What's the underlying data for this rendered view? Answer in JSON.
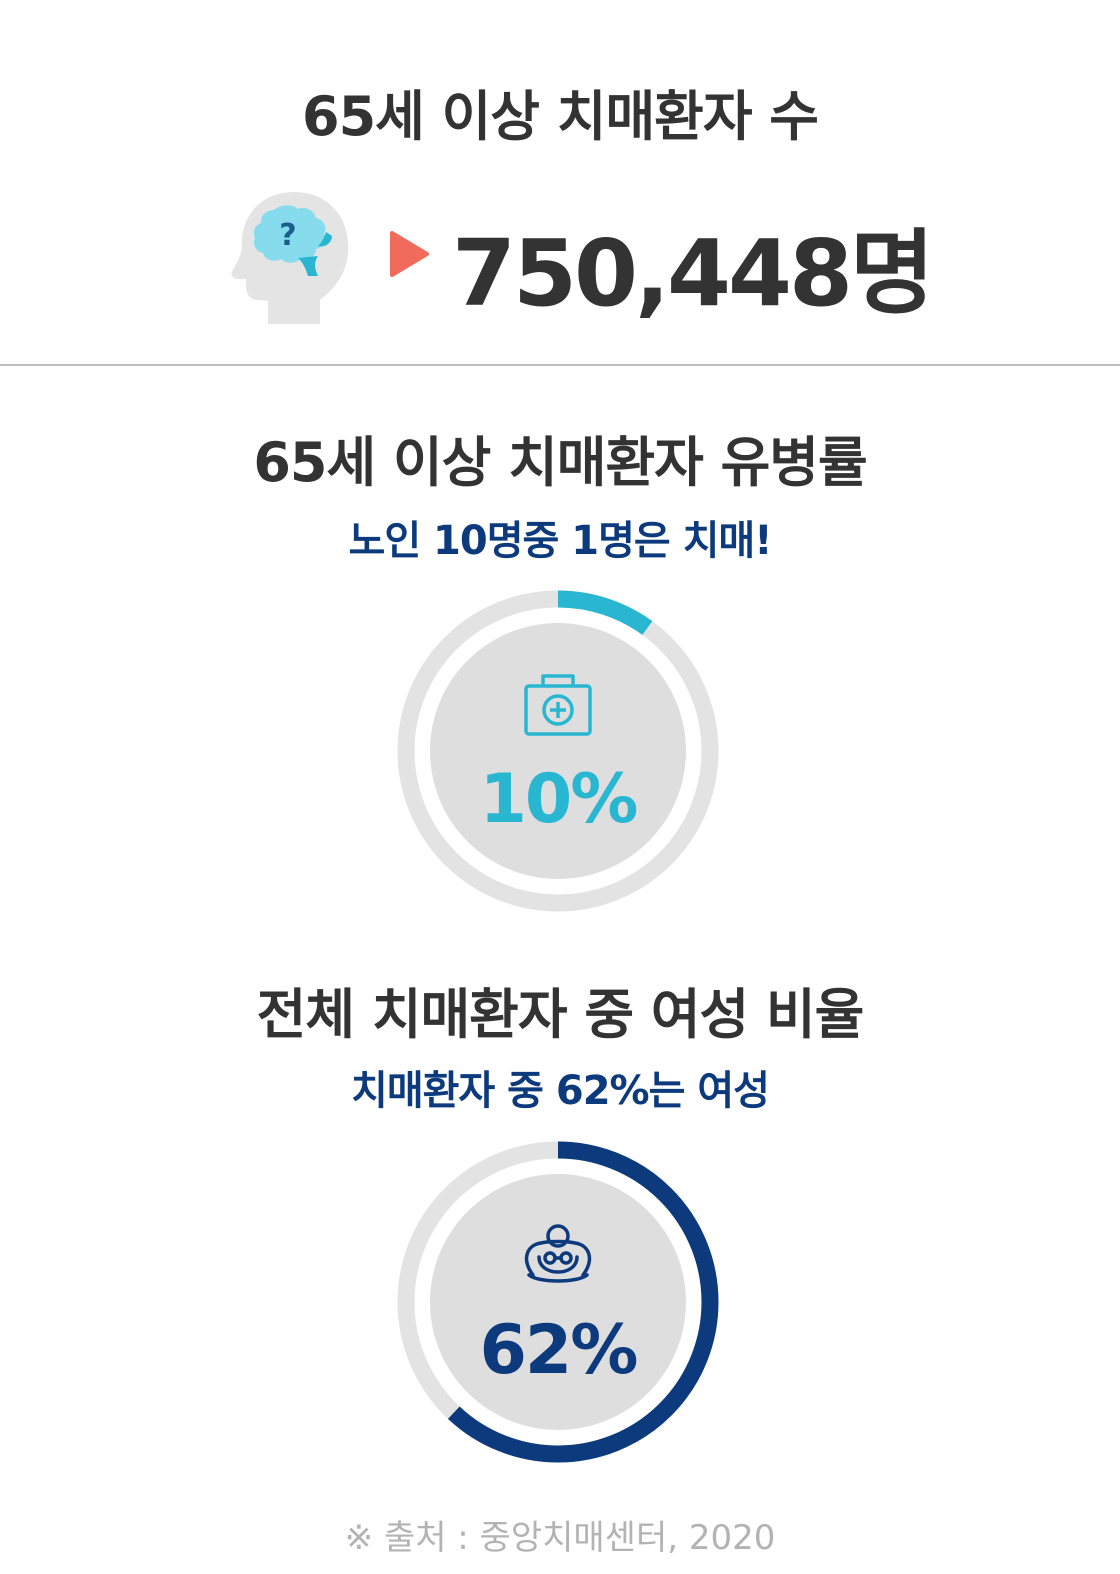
{
  "section1": {
    "title": "65세 이상 치매환자 수",
    "value": "750,448명"
  },
  "section2": {
    "title": "65세 이상 치매환자 유병률",
    "subtitle": "노인 10명중 1명은 치매!"
  },
  "section3": {
    "title": "전체 치매환자 중 여성 비율",
    "subtitle": "치매환자 중 62%는 여성"
  },
  "source": "※ 출처 : 중앙치매센터, 2020",
  "icons": {
    "head": "head-with-brain-question-icon",
    "arrow": "play-triangle-icon",
    "kit": "medical-kit-icon",
    "woman": "elderly-woman-icon"
  },
  "colors": {
    "title": "#333333",
    "subtitle": "#0c3a7c",
    "arrow": "#f06b5b",
    "donut_track": "#e3e3e3",
    "donut_inner": "#dedede",
    "prevalence": "#29b6d1",
    "female": "#0c3a7c",
    "source": "#b3b3b3"
  },
  "chart_data": [
    {
      "type": "pie",
      "label": "10%",
      "value": 10,
      "max": 100,
      "color": "#29b6d1"
    },
    {
      "type": "pie",
      "label": "62%",
      "value": 62,
      "max": 100,
      "color": "#0c3a7c"
    }
  ]
}
